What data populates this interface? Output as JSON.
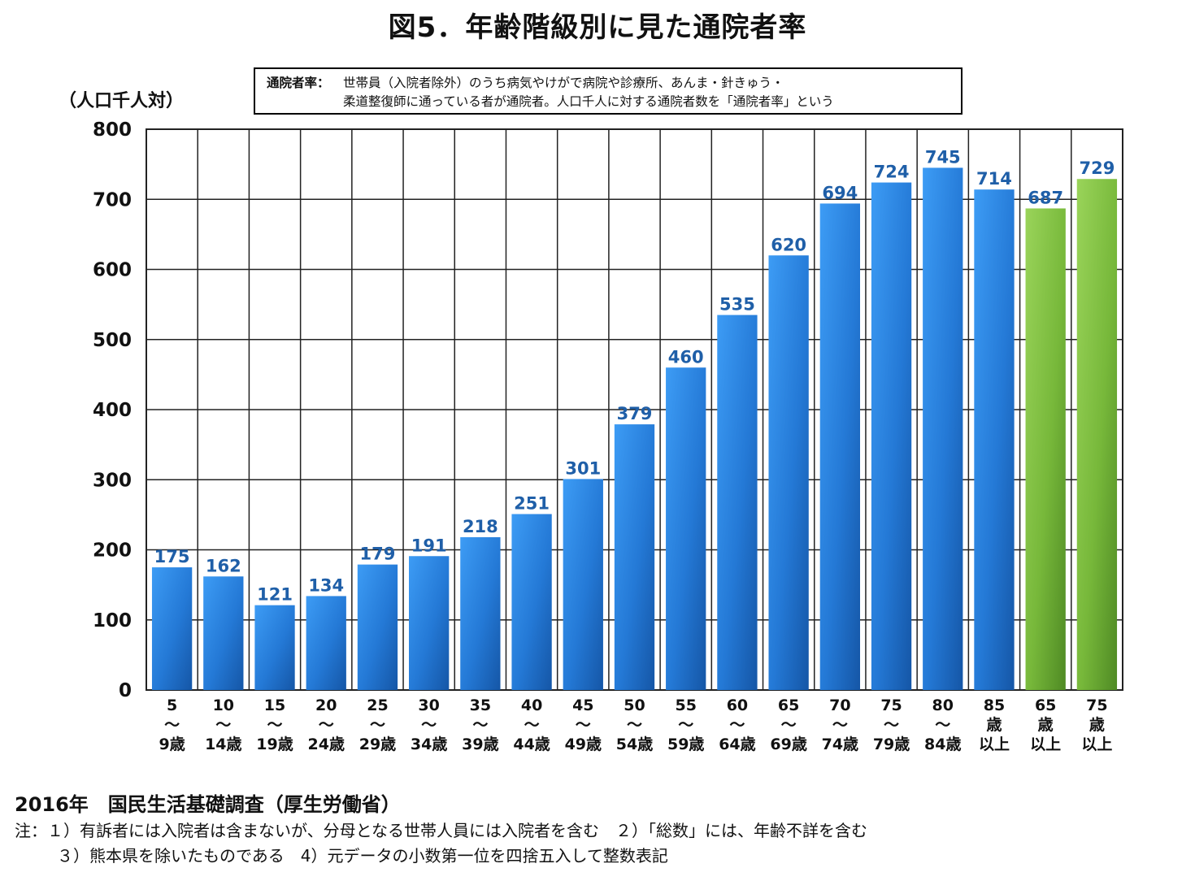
{
  "title": "図5．年齢階級別に見た通院者率",
  "note": {
    "term": "通院者率：",
    "line1": "世帯員（入院者除外）のうち病気やけがで病院や診療所、あんま・針きゅう・",
    "line2": "柔道整復師に通っている者が通院者。人口千人に対する通院者数を「通院者率」という"
  },
  "source": "2016年　国民生活基礎調査（厚生労働省）",
  "footnotes": {
    "line1": "注：１）有訴者には入院者は含まないが、分母となる世帯人員には入院者を含む　２）「総数」には、年齢不詳を含む",
    "line2": "３）熊本県を除いたものである　4）元データの小数第一位を四捨五入して整数表記"
  },
  "colors": {
    "blue_bar": "#2a86e0",
    "green_bar": "#7cbf3a",
    "value_label": "#1f5fa8",
    "grid": "#222222"
  },
  "chart_data": {
    "type": "bar",
    "ylabel": "（人口千人対）",
    "ylim": [
      0,
      800
    ],
    "yticks": [
      0,
      100,
      200,
      300,
      400,
      500,
      600,
      700,
      800
    ],
    "grid": true,
    "categories": [
      [
        "5",
        "～",
        "9歳"
      ],
      [
        "10",
        "～",
        "14歳"
      ],
      [
        "15",
        "～",
        "19歳"
      ],
      [
        "20",
        "～",
        "24歳"
      ],
      [
        "25",
        "～",
        "29歳"
      ],
      [
        "30",
        "～",
        "34歳"
      ],
      [
        "35",
        "～",
        "39歳"
      ],
      [
        "40",
        "～",
        "44歳"
      ],
      [
        "45",
        "～",
        "49歳"
      ],
      [
        "50",
        "～",
        "54歳"
      ],
      [
        "55",
        "～",
        "59歳"
      ],
      [
        "60",
        "～",
        "64歳"
      ],
      [
        "65",
        "～",
        "69歳"
      ],
      [
        "70",
        "～",
        "74歳"
      ],
      [
        "75",
        "～",
        "79歳"
      ],
      [
        "80",
        "～",
        "84歳"
      ],
      [
        "85",
        "歳",
        "以上"
      ],
      [
        "65",
        "歳",
        "以上"
      ],
      [
        "75",
        "歳",
        "以上"
      ]
    ],
    "values": [
      175,
      162,
      121,
      134,
      179,
      191,
      218,
      251,
      301,
      379,
      460,
      535,
      620,
      694,
      724,
      745,
      714,
      687,
      729
    ],
    "bar_colors": [
      "blue",
      "blue",
      "blue",
      "blue",
      "blue",
      "blue",
      "blue",
      "blue",
      "blue",
      "blue",
      "blue",
      "blue",
      "blue",
      "blue",
      "blue",
      "blue",
      "blue",
      "green",
      "green"
    ]
  }
}
